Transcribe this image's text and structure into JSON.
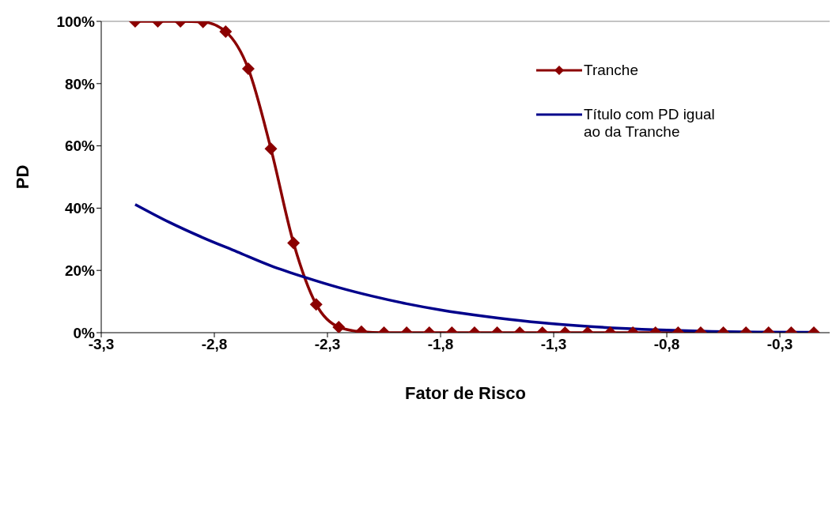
{
  "chart_data": {
    "type": "line",
    "xlabel": "Fator de Risco",
    "ylabel": "PD",
    "xlim": [
      -3.3,
      -0.08
    ],
    "ylim": [
      0,
      100
    ],
    "xticks": [
      {
        "value": -3.3,
        "label": "-3,3"
      },
      {
        "value": -2.8,
        "label": "-2,8"
      },
      {
        "value": -2.3,
        "label": "-2,3"
      },
      {
        "value": -1.8,
        "label": "-1,8"
      },
      {
        "value": -1.3,
        "label": "-1,3"
      },
      {
        "value": -0.8,
        "label": "-0,8"
      },
      {
        "value": -0.3,
        "label": "-0,3"
      }
    ],
    "yticks": [
      {
        "value": 0,
        "label": "0%"
      },
      {
        "value": 20,
        "label": "20%"
      },
      {
        "value": 40,
        "label": "40%"
      },
      {
        "value": 60,
        "label": "60%"
      },
      {
        "value": 80,
        "label": "80%"
      },
      {
        "value": 100,
        "label": "100%"
      }
    ],
    "legend": "top right",
    "grid": false,
    "series": [
      {
        "name": "Tranche",
        "color": "#8b0000",
        "marker": "diamond",
        "x": [
          -3.15,
          -3.05,
          -2.95,
          -2.85,
          -2.75,
          -2.65,
          -2.55,
          -2.45,
          -2.35,
          -2.25,
          -2.15,
          -2.05,
          -1.95,
          -1.85,
          -1.75,
          -1.65,
          -1.55,
          -1.45,
          -1.35,
          -1.25,
          -1.15,
          -1.05,
          -0.95,
          -0.85,
          -0.75,
          -0.65,
          -0.55,
          -0.45,
          -0.35,
          -0.25,
          -0.15
        ],
        "values": [
          100,
          100,
          100,
          99.8,
          96.7,
          84.8,
          59.1,
          28.8,
          9.1,
          1.8,
          0.3,
          0,
          0,
          0,
          0,
          0,
          0,
          0,
          0,
          0,
          0,
          0,
          0,
          0,
          0,
          0,
          0,
          0,
          0,
          0,
          0
        ]
      },
      {
        "name": "Título com PD igual ao da Tranche",
        "color": "#00008b",
        "marker": "none",
        "x": [
          -3.15,
          -3.0,
          -2.85,
          -2.7,
          -2.55,
          -2.4,
          -2.25,
          -2.1,
          -1.95,
          -1.8,
          -1.6,
          -1.4,
          -1.2,
          -1.0,
          -0.8,
          -0.6,
          -0.4,
          -0.15
        ],
        "values": [
          41.2,
          35.5,
          30.5,
          26,
          21.5,
          17.8,
          14.5,
          11.7,
          9.3,
          7.3,
          5.2,
          3.5,
          2.3,
          1.4,
          0.8,
          0.4,
          0.2,
          0.1
        ]
      }
    ]
  }
}
